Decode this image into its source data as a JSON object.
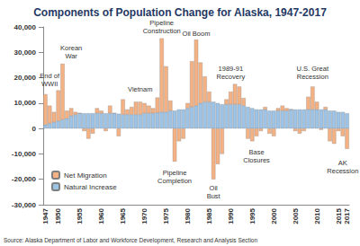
{
  "chart_data": {
    "type": "bar",
    "title": "Components of Population Change for Alaska, 1947-2017",
    "source": "Source: Alaska Department of Labor and Workforce Development, Research and Analysis Section",
    "stacked": true,
    "grid": false,
    "legend": "lower left",
    "categories": [
      "1947",
      null,
      null,
      "1950",
      null,
      null,
      null,
      null,
      "1955",
      null,
      null,
      null,
      null,
      "1960",
      null,
      null,
      null,
      null,
      "1965",
      null,
      null,
      null,
      null,
      "1970",
      null,
      null,
      null,
      null,
      "1975",
      null,
      null,
      null,
      null,
      "1980",
      null,
      null,
      null,
      null,
      "1985",
      null,
      null,
      null,
      null,
      "1990",
      null,
      null,
      null,
      null,
      "1995",
      null,
      null,
      null,
      null,
      "2000",
      null,
      null,
      null,
      null,
      "2005",
      null,
      null,
      null,
      null,
      "2010",
      null,
      null,
      null,
      null,
      "2015",
      null,
      "2017"
    ],
    "series": [
      {
        "name": "Net Migration",
        "color": "#F4B183",
        "values": [
          12000,
          7000,
          4000,
          12000,
          22000,
          3000,
          3000,
          1000,
          0,
          -1000,
          -4000,
          -2000,
          2000,
          1000,
          -1000,
          3000,
          0,
          -3000,
          6000,
          2000,
          3000,
          5000,
          5000,
          4000,
          3000,
          2000,
          6000,
          29000,
          18000,
          4000,
          -13000,
          -5000,
          -4000,
          2000,
          18000,
          26000,
          16000,
          10000,
          4000,
          -20000,
          -14000,
          -10000,
          2000,
          5000,
          8000,
          7000,
          3000,
          -4000,
          -5000,
          -3000,
          -1000,
          1000,
          -2000,
          -3000,
          1000,
          2000,
          1000,
          0,
          -1000,
          -2000,
          -1000,
          5000,
          9000,
          3000,
          -500,
          1000,
          -5000,
          -6000,
          -1000,
          -3000,
          -8000
        ]
      },
      {
        "name": "Natural Increase",
        "color": "#9DC3E6",
        "values": [
          1500,
          2000,
          2500,
          3000,
          3500,
          4000,
          5000,
          5500,
          6000,
          6000,
          6000,
          6000,
          6000,
          6000,
          6000,
          6000,
          6000,
          5800,
          5500,
          5500,
          5500,
          5500,
          5500,
          6000,
          6000,
          6000,
          6200,
          6500,
          6500,
          7000,
          7000,
          7500,
          7500,
          8000,
          8500,
          9000,
          10000,
          10500,
          10500,
          10500,
          10000,
          9500,
          9500,
          9500,
          9500,
          9500,
          9000,
          8500,
          8000,
          7500,
          7500,
          7500,
          7000,
          7000,
          7000,
          7000,
          7000,
          7500,
          7500,
          7500,
          7500,
          7500,
          7500,
          7500,
          7500,
          7500,
          7000,
          7000,
          6500,
          6500,
          6000
        ]
      }
    ],
    "ylim": [
      -30000,
      40000
    ],
    "yticks": [
      {
        "value": -30000,
        "label": "-30,000"
      },
      {
        "value": -20000,
        "label": "-20,000"
      },
      {
        "value": -10000,
        "label": "-10,000"
      },
      0,
      {
        "value": 10000,
        "label": "10,000"
      },
      {
        "value": 20000,
        "label": "20,000"
      },
      {
        "value": 30000,
        "label": "30,000"
      },
      {
        "value": 40000,
        "label": "40,000"
      }
    ],
    "annotations": [
      {
        "text": "End of\nWWII",
        "x": 1948,
        "y": 19000
      },
      {
        "text": "Korean\nWar",
        "x": 1953,
        "y": 30000
      },
      {
        "text": "Vietnam",
        "x": 1969,
        "y": 15500
      },
      {
        "text": "Pipeline\nConstruction",
        "x": 1974,
        "y": 40000
      },
      {
        "text": "Oil Boom",
        "x": 1982,
        "y": 37500
      },
      {
        "text": "1989-91\nRecovery",
        "x": 1990,
        "y": 22000
      },
      {
        "text": "U.S. Great\nRecession",
        "x": 2009,
        "y": 22000
      },
      {
        "text": "Pipeline\nCompletion",
        "x": 1977,
        "y": -19000
      },
      {
        "text": "Oil\nBust",
        "x": 1986,
        "y": -25000
      },
      {
        "text": "Base\nClosures",
        "x": 1996,
        "y": -11000
      },
      {
        "text": "AK\nRecession",
        "x": 2016,
        "y": -15000
      }
    ]
  }
}
